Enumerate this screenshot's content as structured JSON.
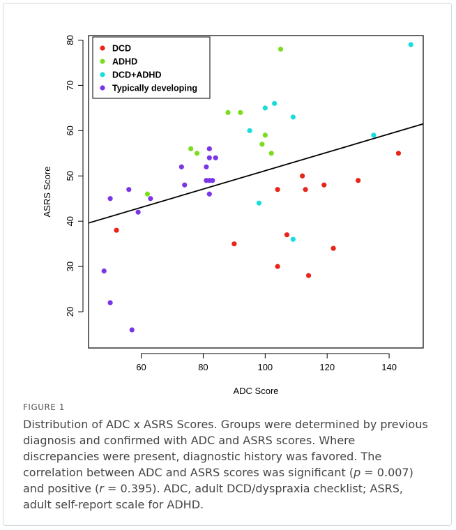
{
  "chart_data": {
    "type": "scatter",
    "xlabel": "ADC Score",
    "ylabel": "ASRS Score",
    "xlim": [
      43,
      151
    ],
    "ylim": [
      12,
      81
    ],
    "x_ticks": [
      60,
      80,
      100,
      120,
      140
    ],
    "y_ticks": [
      20,
      30,
      40,
      50,
      60,
      70,
      80
    ],
    "legend_position": "top-left",
    "series": [
      {
        "name": "DCD",
        "color": "#e8241b",
        "points": [
          [
            52,
            38
          ],
          [
            90,
            35
          ],
          [
            104,
            47
          ],
          [
            104,
            30
          ],
          [
            107,
            37
          ],
          [
            112,
            50
          ],
          [
            113,
            47
          ],
          [
            114,
            28
          ],
          [
            119,
            48
          ],
          [
            122,
            34
          ],
          [
            130,
            49
          ],
          [
            143,
            55
          ]
        ]
      },
      {
        "name": "ADHD",
        "color": "#7cdc1f",
        "points": [
          [
            62,
            46
          ],
          [
            76,
            56
          ],
          [
            78,
            55
          ],
          [
            88,
            64
          ],
          [
            92,
            64
          ],
          [
            99,
            57
          ],
          [
            100,
            59
          ],
          [
            102,
            55
          ],
          [
            105,
            78
          ]
        ]
      },
      {
        "name": "DCD+ADHD",
        "color": "#1bdcdc",
        "points": [
          [
            95,
            60
          ],
          [
            98,
            44
          ],
          [
            100,
            65
          ],
          [
            103,
            66
          ],
          [
            109,
            63
          ],
          [
            109,
            36
          ],
          [
            135,
            59
          ],
          [
            147,
            79
          ]
        ]
      },
      {
        "name": "Typically developing",
        "color": "#7a35e6",
        "points": [
          [
            48,
            29
          ],
          [
            50,
            45
          ],
          [
            50,
            22
          ],
          [
            56,
            47
          ],
          [
            57,
            16
          ],
          [
            59,
            42
          ],
          [
            63,
            45
          ],
          [
            73,
            52
          ],
          [
            74,
            48
          ],
          [
            81,
            49
          ],
          [
            81,
            52
          ],
          [
            82,
            56
          ],
          [
            82,
            54
          ],
          [
            82,
            49
          ],
          [
            82,
            46
          ],
          [
            83,
            49
          ],
          [
            84,
            54
          ]
        ]
      }
    ],
    "regression_line": {
      "x": [
        43,
        151
      ],
      "y": [
        39.6,
        61.5
      ]
    }
  },
  "figure_label": "FIGURE 1",
  "caption": {
    "part1": "Distribution of ADC x ASRS Scores. Groups were determined by previous diagnosis and confirmed with ADC and ASRS scores. Where discrepancies were present, diagnostic history was favored. The correlation between ADC and ASRS scores was significant (",
    "p_symbol": "p",
    "part2": " = 0.007) and positive (",
    "r_symbol": "r",
    "part3": " = 0.395). ADC, adult DCD/dyspraxia checklist; ASRS, adult self-report scale for ADHD."
  }
}
